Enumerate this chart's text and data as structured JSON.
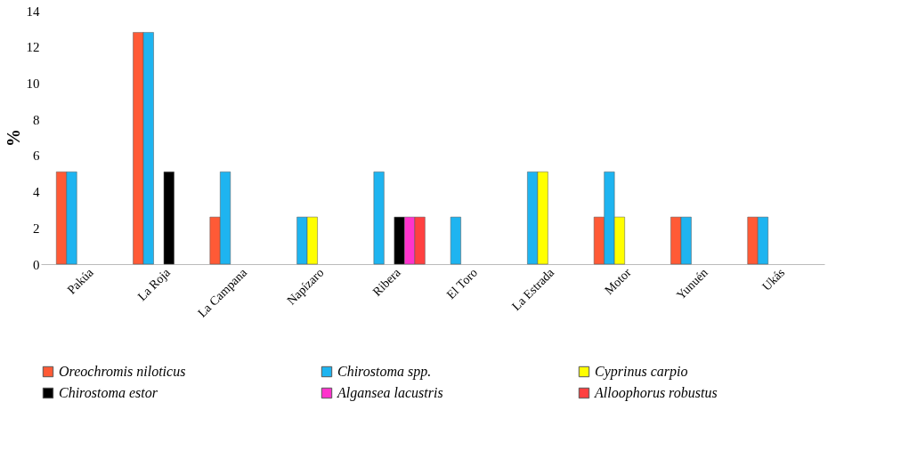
{
  "chart_data": {
    "type": "bar",
    "ylabel": "%",
    "categories": [
      "Pakúa",
      "La Roja",
      "La Campana",
      "Napízaro",
      "Ribera",
      "El Toro",
      "La Estrada",
      "Motor",
      "Yunuén",
      "Ukás"
    ],
    "series": [
      {
        "name": "Oreochromis niloticus",
        "color": "#ff5a36",
        "values": [
          5.1,
          12.8,
          2.6,
          null,
          null,
          null,
          null,
          2.6,
          2.6,
          2.6
        ]
      },
      {
        "name": "Chirostoma spp.",
        "color": "#1eb4f0",
        "values": [
          5.1,
          12.8,
          5.1,
          2.6,
          5.1,
          2.6,
          5.1,
          5.1,
          2.6,
          2.6
        ]
      },
      {
        "name": "Cyprinus carpio",
        "color": "#ffff00",
        "values": [
          null,
          null,
          null,
          2.6,
          null,
          null,
          5.1,
          2.6,
          null,
          null
        ]
      },
      {
        "name": "Chirostoma estor",
        "color": "#000000",
        "values": [
          null,
          5.1,
          null,
          null,
          2.6,
          null,
          null,
          null,
          null,
          null
        ]
      },
      {
        "name": "Algansea lacustris",
        "color": "#ff33cc",
        "values": [
          null,
          null,
          null,
          null,
          2.6,
          null,
          null,
          null,
          null,
          null
        ]
      },
      {
        "name": "Alloophorus robustus",
        "color": "#ff4040",
        "values": [
          null,
          null,
          null,
          null,
          2.6,
          null,
          null,
          null,
          null,
          null
        ]
      }
    ],
    "ylim": [
      0,
      14
    ],
    "yticks": [
      0,
      2,
      4,
      6,
      8,
      10,
      12,
      14
    ],
    "grid": false,
    "legend": "bottom"
  }
}
